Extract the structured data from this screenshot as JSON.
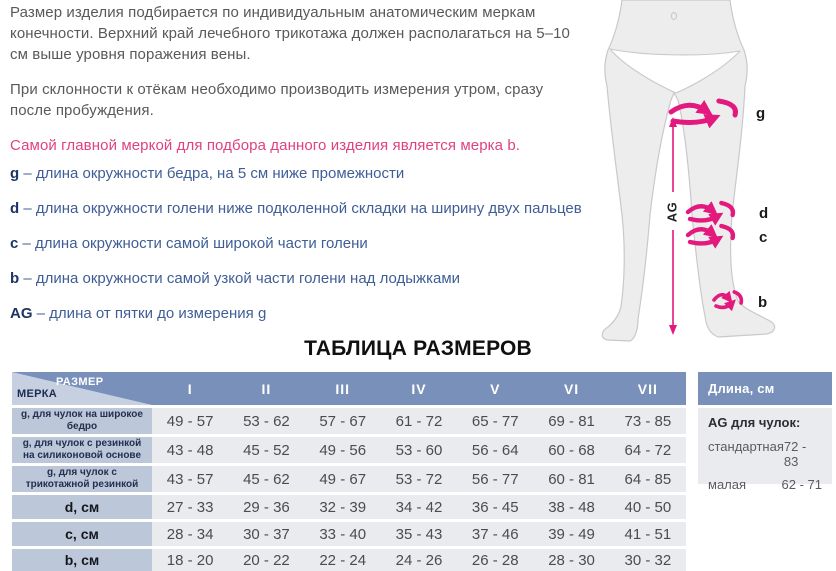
{
  "intro": {
    "paragraph1": "Размер изделия подбирается по индивидуальным анатомическим меркам\nконечности. Верхний край лечебного трикотажа должен располагаться на 5–10\nсм выше уровня поражения вены.",
    "paragraph2": "При склонности к отёкам необходимо производить измерения утром, сразу\nпосле пробуждения.",
    "highlight": "Самой главной меркой для подбора данного изделия является мерка b."
  },
  "measurements": [
    {
      "letter": "g",
      "text": "– длина окружности бедра, на 5 см ниже промежности"
    },
    {
      "letter": "d",
      "text": "– длина окружности голени ниже подколенной складки на ширину двух пальцев"
    },
    {
      "letter": "c",
      "text": "– длина окружности самой широкой части голени"
    },
    {
      "letter": "b",
      "text": "– длина окружности самой узкой части голени над лодыжками"
    },
    {
      "letter": "AG",
      "text": "– длина от пятки до измерения g"
    }
  ],
  "diagram": {
    "labels": {
      "g": "g",
      "d": "d",
      "c": "c",
      "b": "b",
      "ag": "AG"
    },
    "accent_color": "#e3197d",
    "silhouette_fill": "#ededee",
    "silhouette_stroke": "#c9c9cb"
  },
  "size_table": {
    "title": "ТАБЛИЦА РАЗМЕРОВ",
    "corner": {
      "size": "РАЗМЕР",
      "measure": "МЕРКА"
    },
    "columns": [
      "I",
      "II",
      "III",
      "IV",
      "V",
      "VI",
      "VII"
    ],
    "rows": [
      {
        "label": "g, для чулок на широкое бедро",
        "style": "small",
        "values": [
          "49 - 57",
          "53 - 62",
          "57 - 67",
          "61 - 72",
          "65 - 77",
          "69 - 81",
          "73 - 85"
        ]
      },
      {
        "label": "g, для чулок с резинкой на силиконовой основе",
        "style": "small",
        "values": [
          "43 - 48",
          "45 - 52",
          "49 - 56",
          "53 - 60",
          "56 - 64",
          "60 - 68",
          "64 - 72"
        ]
      },
      {
        "label": "g, для чулок с трикотажной резинкой",
        "style": "small",
        "values": [
          "43 - 57",
          "45 - 62",
          "49 - 67",
          "53 - 72",
          "56 - 77",
          "60 - 81",
          "64 - 85"
        ]
      },
      {
        "label": "d, см",
        "style": "big",
        "values": [
          "27 - 33",
          "29 - 36",
          "32 - 39",
          "34 - 42",
          "36 - 45",
          "38 - 48",
          "40 - 50"
        ]
      },
      {
        "label": "c, см",
        "style": "big",
        "values": [
          "28 - 34",
          "30 - 37",
          "33 - 40",
          "35 - 43",
          "37 - 46",
          "39 - 49",
          "41 - 51"
        ]
      },
      {
        "label": "b, см",
        "style": "big",
        "values": [
          "18 - 20",
          "20 - 22",
          "22 - 24",
          "24 - 26",
          "26 - 28",
          "28 - 30",
          "30 - 32"
        ]
      }
    ]
  },
  "length_panel": {
    "header": "Длина, см",
    "subtitle": "AG для чулок:",
    "rows": [
      {
        "label": "стандартная",
        "value": "72 - 83"
      },
      {
        "label": "малая",
        "value": "62 - 71"
      }
    ]
  },
  "colors": {
    "accent_pink": "#e3197d",
    "highlight_text": "#e0417f",
    "body_text": "#58595b",
    "list_text": "#3f5e96",
    "letter_navy": "#1c3566",
    "table_header": "#7890ba",
    "table_label_cell": "#bcc7da",
    "table_value_cell": "#e9ebee"
  }
}
